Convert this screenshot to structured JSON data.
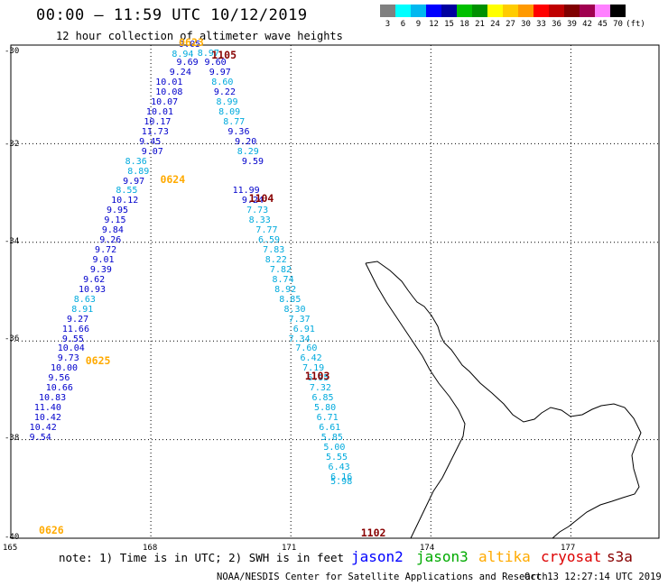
{
  "header": {
    "title": "00:00 – 11:59 UTC 10/12/2019",
    "subtitle": "12 hour collection of altimeter wave heights"
  },
  "legend": {
    "labels": [
      "3",
      "6",
      "9",
      "12",
      "15",
      "18",
      "21",
      "24",
      "27",
      "30",
      "33",
      "36",
      "39",
      "42",
      "45",
      "70"
    ],
    "unit": "(ft)",
    "colors": [
      "#808080",
      "#00ffff",
      "#00b8f0",
      "#0000ff",
      "#0000a0",
      "#00c000",
      "#009000",
      "#ffff00",
      "#ffcc00",
      "#ff9900",
      "#ff0000",
      "#c00000",
      "#800000",
      "#a00050",
      "#ff80ff",
      "#000000"
    ]
  },
  "axes": {
    "lat_labels": [
      "-30",
      "-32",
      "-34",
      "-36",
      "-38",
      "-40"
    ],
    "lon_labels": [
      "165",
      "168",
      "171",
      "174",
      "177"
    ]
  },
  "footer": {
    "note": "note: 1) Time is in UTC; 2) SWH is in feet",
    "credit": "NOAA/NESDIS Center for Satellite Applications and Research",
    "timestamp": "Oct 13 12:27:14 UTC 2019",
    "satellites": [
      {
        "name": "jason2",
        "color": "#0000ff"
      },
      {
        "name": "jason3",
        "color": "#00aa00"
      },
      {
        "name": "altika",
        "color": "#ffaa00"
      },
      {
        "name": "cryosat",
        "color": "#dd0000"
      },
      {
        "name": "s3a",
        "color": "#880000"
      }
    ]
  },
  "chart_data": {
    "type": "scatter",
    "title": "00:00 – 11:59 UTC 10/12/2019",
    "subtitle": "12 hour collection of altimeter wave heights",
    "xlim": [
      165,
      178.5
    ],
    "ylim": [
      -40,
      -30
    ],
    "pass_labels": [
      {
        "text": "0623",
        "lon": 168.6,
        "lat": -29.97,
        "color": "#ffaa00"
      },
      {
        "text": "1105",
        "lon": 169.3,
        "lat": -30.22,
        "color": "#880000"
      },
      {
        "text": "0624",
        "lon": 168.2,
        "lat": -32.75,
        "color": "#ffaa00"
      },
      {
        "text": "1104",
        "lon": 170.1,
        "lat": -33.12,
        "color": "#880000"
      },
      {
        "text": "0625",
        "lon": 166.6,
        "lat": -36.42,
        "color": "#ffaa00"
      },
      {
        "text": "1103",
        "lon": 171.3,
        "lat": -36.72,
        "color": "#880000"
      },
      {
        "text": "0626",
        "lon": 165.6,
        "lat": -39.85,
        "color": "#ffaa00"
      },
      {
        "text": "1102",
        "lon": 172.5,
        "lat": -39.9,
        "color": "#880000"
      }
    ],
    "tracks": [
      {
        "pass": "0623-0626",
        "points": [
          [
            168.6,
            -30.0,
            "9.05",
            "#0000cc"
          ],
          [
            168.45,
            -30.2,
            "8.94",
            "#00aadd"
          ],
          [
            168.55,
            -30.37,
            "9.69",
            "#0000cc"
          ],
          [
            168.4,
            -30.57,
            "9.24",
            "#0000cc"
          ],
          [
            168.1,
            -30.77,
            "10.01",
            "#0000cc"
          ],
          [
            168.1,
            -30.97,
            "10.08",
            "#0000cc"
          ],
          [
            168.0,
            -31.17,
            "10.07",
            "#0000cc"
          ],
          [
            167.9,
            -31.37,
            "10.01",
            "#0000cc"
          ],
          [
            167.85,
            -31.57,
            "10.17",
            "#0000cc"
          ],
          [
            167.8,
            -31.77,
            "11.73",
            "#0000cc"
          ],
          [
            167.75,
            -31.97,
            "9.45",
            "#0000cc"
          ],
          [
            167.8,
            -32.17,
            "9.07",
            "#0000cc"
          ],
          [
            167.45,
            -32.37,
            "8.36",
            "#00aadd"
          ],
          [
            167.5,
            -32.57,
            "8.89",
            "#00aadd"
          ],
          [
            167.4,
            -32.77,
            "9.97",
            "#0000cc"
          ],
          [
            167.25,
            -32.97,
            "8.55",
            "#00aadd"
          ],
          [
            167.15,
            -33.17,
            "10.12",
            "#0000cc"
          ],
          [
            167.05,
            -33.37,
            "9.95",
            "#0000cc"
          ],
          [
            167.0,
            -33.57,
            "9.15",
            "#0000cc"
          ],
          [
            166.95,
            -33.77,
            "9.84",
            "#0000cc"
          ],
          [
            166.9,
            -33.97,
            "9.26",
            "#0000cc"
          ],
          [
            166.8,
            -34.17,
            "9.72",
            "#0000cc"
          ],
          [
            166.75,
            -34.37,
            "9.01",
            "#0000cc"
          ],
          [
            166.7,
            -34.57,
            "9.39",
            "#0000cc"
          ],
          [
            166.55,
            -34.77,
            "9.62",
            "#0000cc"
          ],
          [
            166.45,
            -34.97,
            "10.93",
            "#0000cc"
          ],
          [
            166.35,
            -35.17,
            "8.63",
            "#00aadd"
          ],
          [
            166.3,
            -35.37,
            "8.91",
            "#00aadd"
          ],
          [
            166.2,
            -35.57,
            "9.27",
            "#0000cc"
          ],
          [
            166.1,
            -35.77,
            "11.66",
            "#0000cc"
          ],
          [
            166.1,
            -35.97,
            "9.55",
            "#0000cc"
          ],
          [
            166.0,
            -36.17,
            "10.04",
            "#0000cc"
          ],
          [
            166.0,
            -36.37,
            "9.73",
            "#0000cc"
          ],
          [
            165.85,
            -36.57,
            "10.00",
            "#0000cc"
          ],
          [
            165.8,
            -36.77,
            "9.56",
            "#0000cc"
          ],
          [
            165.75,
            -36.97,
            "10.66",
            "#0000cc"
          ],
          [
            165.6,
            -37.17,
            "10.83",
            "#0000cc"
          ],
          [
            165.5,
            -37.37,
            "11.40",
            "#0000cc"
          ],
          [
            165.5,
            -37.57,
            "10.42",
            "#0000cc"
          ],
          [
            165.4,
            -37.77,
            "10.42",
            "#0000cc"
          ],
          [
            165.4,
            -37.97,
            "9.54",
            "#0000cc"
          ]
        ]
      },
      {
        "pass": "1105-1102",
        "points": [
          [
            169.0,
            -30.18,
            "8.97",
            "#00aadd"
          ],
          [
            169.15,
            -30.37,
            "9.60",
            "#0000cc"
          ],
          [
            169.25,
            -30.57,
            "9.97",
            "#0000cc"
          ],
          [
            169.3,
            -30.77,
            "8.60",
            "#00aadd"
          ],
          [
            169.35,
            -30.97,
            "9.22",
            "#0000cc"
          ],
          [
            169.4,
            -31.17,
            "8.99",
            "#00aadd"
          ],
          [
            169.45,
            -31.37,
            "8.09",
            "#00aadd"
          ],
          [
            169.55,
            -31.57,
            "8.77",
            "#00aadd"
          ],
          [
            169.65,
            -31.77,
            "9.36",
            "#0000cc"
          ],
          [
            169.8,
            -31.97,
            "9.20",
            "#0000cc"
          ],
          [
            169.85,
            -32.17,
            "8.29",
            "#00aadd"
          ],
          [
            169.95,
            -32.37,
            "9.59",
            "#0000cc"
          ],
          [
            169.75,
            -32.97,
            "11.99",
            "#0000cc"
          ],
          [
            169.95,
            -33.17,
            "9.24",
            "#0000cc"
          ],
          [
            170.05,
            -33.37,
            "7.73",
            "#00aadd"
          ],
          [
            170.1,
            -33.57,
            "8.33",
            "#00aadd"
          ],
          [
            170.25,
            -33.77,
            "7.77",
            "#00aadd"
          ],
          [
            170.3,
            -33.97,
            "6.59",
            "#00aadd"
          ],
          [
            170.4,
            -34.17,
            "7.83",
            "#00aadd"
          ],
          [
            170.45,
            -34.37,
            "8.22",
            "#00aadd"
          ],
          [
            170.55,
            -34.57,
            "7.82",
            "#00aadd"
          ],
          [
            170.6,
            -34.77,
            "8.74",
            "#00aadd"
          ],
          [
            170.65,
            -34.97,
            "8.92",
            "#00aadd"
          ],
          [
            170.75,
            -35.17,
            "8.85",
            "#00aadd"
          ],
          [
            170.85,
            -35.37,
            "8.30",
            "#00aadd"
          ],
          [
            170.95,
            -35.57,
            "7.37",
            "#00aadd"
          ],
          [
            171.05,
            -35.77,
            "6.91",
            "#00aadd"
          ],
          [
            170.95,
            -35.97,
            "7.34",
            "#00aadd"
          ],
          [
            171.1,
            -36.17,
            "7.60",
            "#00aadd"
          ],
          [
            171.2,
            -36.37,
            "6.42",
            "#00aadd"
          ],
          [
            171.25,
            -36.57,
            "7.19",
            "#00aadd"
          ],
          [
            171.35,
            -36.77,
            "6.95",
            "#00aadd"
          ],
          [
            171.4,
            -36.97,
            "7.32",
            "#00aadd"
          ],
          [
            171.45,
            -37.17,
            "6.85",
            "#00aadd"
          ],
          [
            171.5,
            -37.37,
            "5.80",
            "#00aadd"
          ],
          [
            171.55,
            -37.57,
            "6.71",
            "#00aadd"
          ],
          [
            171.6,
            -37.77,
            "6.61",
            "#00aadd"
          ],
          [
            171.65,
            -37.97,
            "5.85",
            "#00aadd"
          ],
          [
            171.7,
            -38.17,
            "5.00",
            "#00aadd"
          ],
          [
            171.75,
            -38.37,
            "5.55",
            "#00aadd"
          ],
          [
            171.8,
            -38.57,
            "6.43",
            "#00aadd"
          ],
          [
            171.85,
            -38.77,
            "6.16",
            "#00aadd"
          ],
          [
            171.85,
            -38.87,
            "5.98",
            "#00aadd"
          ]
        ]
      }
    ]
  }
}
